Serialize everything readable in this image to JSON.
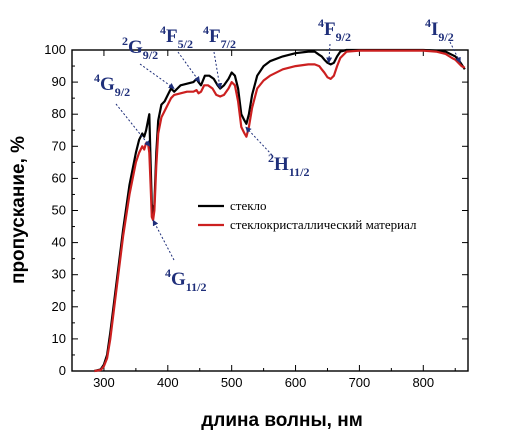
{
  "chart_data": {
    "type": "line",
    "xlabel": "длина волны, нм",
    "ylabel": "пропускание, %",
    "xlim": [
      250,
      870
    ],
    "ylim": [
      0,
      100
    ],
    "x_ticks": [
      300,
      400,
      500,
      600,
      700,
      800
    ],
    "y_ticks": [
      0,
      10,
      20,
      30,
      40,
      50,
      60,
      70,
      80,
      90,
      100
    ],
    "grid": false,
    "legend_position": "center-right",
    "series": [
      {
        "name": "стекло",
        "color": "#000000",
        "points": [
          [
            285,
            0
          ],
          [
            295,
            0.5
          ],
          [
            300,
            2
          ],
          [
            305,
            5
          ],
          [
            310,
            12
          ],
          [
            320,
            28
          ],
          [
            330,
            44
          ],
          [
            340,
            58
          ],
          [
            350,
            68
          ],
          [
            355,
            72
          ],
          [
            360,
            74
          ],
          [
            363,
            73
          ],
          [
            366,
            75
          ],
          [
            369,
            78
          ],
          [
            371,
            80
          ],
          [
            373,
            65
          ],
          [
            375,
            52
          ],
          [
            377,
            49
          ],
          [
            379,
            52
          ],
          [
            382,
            68
          ],
          [
            385,
            78
          ],
          [
            390,
            83
          ],
          [
            395,
            84
          ],
          [
            400,
            86
          ],
          [
            405,
            88
          ],
          [
            410,
            87
          ],
          [
            415,
            88
          ],
          [
            420,
            89
          ],
          [
            430,
            89.5
          ],
          [
            440,
            90
          ],
          [
            445,
            91
          ],
          [
            448,
            90
          ],
          [
            452,
            89
          ],
          [
            458,
            92
          ],
          [
            465,
            92
          ],
          [
            472,
            91
          ],
          [
            478,
            89
          ],
          [
            482,
            88
          ],
          [
            488,
            89
          ],
          [
            495,
            91
          ],
          [
            500,
            93
          ],
          [
            505,
            92
          ],
          [
            510,
            88
          ],
          [
            515,
            80
          ],
          [
            520,
            78
          ],
          [
            523,
            77
          ],
          [
            527,
            80
          ],
          [
            532,
            86
          ],
          [
            540,
            92
          ],
          [
            550,
            95
          ],
          [
            560,
            96.5
          ],
          [
            580,
            98
          ],
          [
            600,
            99
          ],
          [
            620,
            99.5
          ],
          [
            630,
            99.5
          ],
          [
            637,
            98.5
          ],
          [
            641,
            98
          ],
          [
            645,
            97
          ],
          [
            650,
            96
          ],
          [
            655,
            95.5
          ],
          [
            660,
            96
          ],
          [
            665,
            98
          ],
          [
            670,
            99.5
          ],
          [
            680,
            100
          ],
          [
            700,
            100
          ],
          [
            750,
            100
          ],
          [
            800,
            100
          ],
          [
            820,
            99.8
          ],
          [
            835,
            99.5
          ],
          [
            845,
            98.5
          ],
          [
            850,
            98
          ],
          [
            855,
            97
          ],
          [
            860,
            95.5
          ],
          [
            865,
            94
          ]
        ]
      },
      {
        "name": "стеклокристаллический материал",
        "color": "#cc2020",
        "points": [
          [
            285,
            0
          ],
          [
            295,
            0.3
          ],
          [
            300,
            1.5
          ],
          [
            305,
            4
          ],
          [
            310,
            10
          ],
          [
            320,
            26
          ],
          [
            330,
            42
          ],
          [
            340,
            55
          ],
          [
            350,
            65
          ],
          [
            355,
            68
          ],
          [
            360,
            70
          ],
          [
            363,
            69
          ],
          [
            366,
            71
          ],
          [
            369,
            71
          ],
          [
            371,
            68
          ],
          [
            373,
            58
          ],
          [
            375,
            48
          ],
          [
            377,
            47
          ],
          [
            379,
            50
          ],
          [
            382,
            64
          ],
          [
            385,
            74
          ],
          [
            390,
            79
          ],
          [
            395,
            81
          ],
          [
            400,
            83
          ],
          [
            405,
            85
          ],
          [
            410,
            86
          ],
          [
            420,
            86.5
          ],
          [
            430,
            87
          ],
          [
            440,
            87
          ],
          [
            445,
            87.5
          ],
          [
            448,
            86.5
          ],
          [
            452,
            87
          ],
          [
            457,
            89
          ],
          [
            463,
            89
          ],
          [
            470,
            88
          ],
          [
            476,
            86
          ],
          [
            482,
            85.5
          ],
          [
            488,
            86
          ],
          [
            495,
            88
          ],
          [
            500,
            90
          ],
          [
            505,
            89
          ],
          [
            510,
            84
          ],
          [
            515,
            76
          ],
          [
            520,
            74
          ],
          [
            523,
            73
          ],
          [
            527,
            76
          ],
          [
            532,
            82
          ],
          [
            540,
            88
          ],
          [
            550,
            90.5
          ],
          [
            560,
            92
          ],
          [
            580,
            94
          ],
          [
            600,
            95
          ],
          [
            620,
            95.5
          ],
          [
            630,
            95.5
          ],
          [
            637,
            95
          ],
          [
            641,
            94
          ],
          [
            645,
            93
          ],
          [
            650,
            91.5
          ],
          [
            655,
            91
          ],
          [
            660,
            92
          ],
          [
            665,
            95
          ],
          [
            670,
            97.5
          ],
          [
            680,
            99.5
          ],
          [
            700,
            99.8
          ],
          [
            750,
            99.8
          ],
          [
            800,
            99.8
          ],
          [
            820,
            99.5
          ],
          [
            835,
            98.8
          ],
          [
            845,
            97.5
          ],
          [
            850,
            97
          ],
          [
            855,
            96
          ],
          [
            860,
            95
          ],
          [
            865,
            94.5
          ]
        ]
      }
    ],
    "annotations": [
      {
        "main": "G",
        "sup": "4",
        "sub": "9/2",
        "target_x": 372,
        "target_y": 70
      },
      {
        "main": "G",
        "sup": "2",
        "sub": "9/2",
        "target_x": 410,
        "target_y": 88
      },
      {
        "main": "F",
        "sup": "4",
        "sub": "5/2",
        "target_x": 450,
        "target_y": 90
      },
      {
        "main": "F",
        "sup": "4",
        "sub": "7/2",
        "target_x": 482,
        "target_y": 88
      },
      {
        "main": "F",
        "sup": "4",
        "sub": "9/2",
        "target_x": 652,
        "target_y": 96
      },
      {
        "main": "I",
        "sup": "4",
        "sub": "9/2",
        "target_x": 858,
        "target_y": 96
      },
      {
        "main": "H",
        "sup": "2",
        "sub": "11/2",
        "target_x": 522,
        "target_y": 76
      },
      {
        "main": "G",
        "sup": "4",
        "sub": "11/2",
        "target_x": 377,
        "target_y": 47
      }
    ]
  }
}
